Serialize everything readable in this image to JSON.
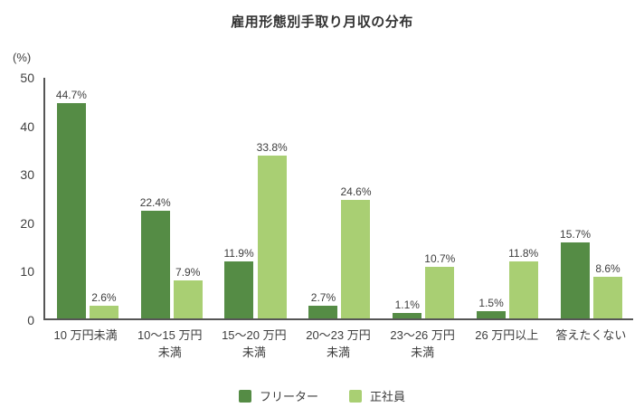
{
  "title": "雇用形態別手取り月収の分布",
  "chart_data": {
    "type": "bar",
    "title": "雇用形態別手取り月収の分布",
    "ylabel": "(%)",
    "xlabel": "",
    "ylim": [
      0,
      50
    ],
    "yticks": [
      0,
      10,
      20,
      30,
      40,
      50
    ],
    "grid": false,
    "legend_position": "bottom",
    "value_label_format": "{v}%",
    "categories": [
      "10 万円未満",
      "10〜15 万円\n未満",
      "15〜20 万円\n未満",
      "20〜23 万円\n未満",
      "23〜26 万円\n未満",
      "26 万円以上",
      "答えたくない"
    ],
    "series": [
      {
        "name": "フリーター",
        "color": "#558c45",
        "values": [
          44.7,
          22.4,
          11.9,
          2.7,
          1.1,
          1.5,
          15.7
        ]
      },
      {
        "name": "正社員",
        "color": "#a9cf73",
        "values": [
          2.6,
          7.9,
          33.8,
          24.6,
          10.7,
          11.8,
          8.6
        ]
      }
    ],
    "colors": {
      "axis": "#565656",
      "text": "#3c3c3c",
      "title": "#333333"
    }
  }
}
